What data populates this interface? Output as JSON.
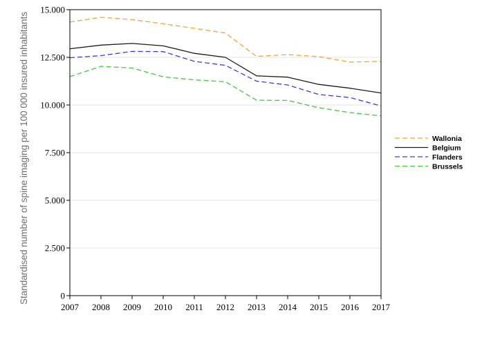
{
  "chart_data": {
    "type": "line",
    "x": [
      2007,
      2008,
      2009,
      2010,
      2011,
      2012,
      2013,
      2014,
      2015,
      2016,
      2017
    ],
    "x_tick_labels": [
      "2007",
      "2008",
      "2009",
      "2010",
      "2011",
      "2012",
      "2013",
      "2014",
      "2015",
      "2016",
      "2017"
    ],
    "ylabel": "Standardised number of spine imaging per 100 000 insured inhabitants",
    "xlabel": "",
    "ylim": [
      0,
      15000
    ],
    "y_ticks": [
      0,
      2500,
      5000,
      7500,
      10000,
      12500,
      15000
    ],
    "y_tick_labels": [
      "0",
      "2.500",
      "5.000",
      "7.500",
      "10.000",
      "12.500",
      "15.000"
    ],
    "grid": "horizontal",
    "legend_position": "right",
    "series": [
      {
        "name": "Wallonia",
        "color": "#f5a33a",
        "style": "dashed",
        "values": [
          14350,
          14600,
          14480,
          14260,
          14020,
          13770,
          12550,
          12640,
          12540,
          12250,
          12290
        ]
      },
      {
        "name": "Belgium",
        "color": "#1a1a1a",
        "style": "solid",
        "values": [
          12950,
          13140,
          13230,
          13100,
          12710,
          12500,
          11530,
          11460,
          11080,
          10880,
          10630
        ]
      },
      {
        "name": "Flanders",
        "color": "#3b3bdc",
        "style": "dashed",
        "values": [
          12480,
          12590,
          12810,
          12800,
          12290,
          12080,
          11250,
          11050,
          10550,
          10390,
          9950
        ]
      },
      {
        "name": "Brussels",
        "color": "#45c945",
        "style": "dashed",
        "values": [
          11490,
          12030,
          11940,
          11480,
          11320,
          11220,
          10250,
          10240,
          9860,
          9600,
          9430
        ]
      }
    ]
  }
}
